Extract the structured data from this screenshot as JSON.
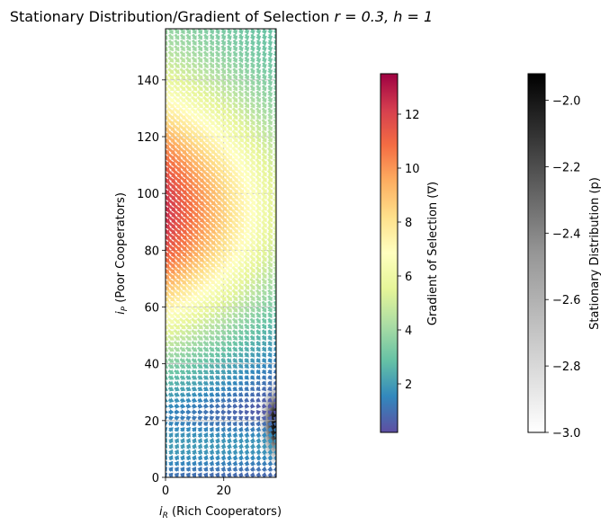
{
  "chart_data": {
    "type": "quiver",
    "title": "Stationary Distribution/Gradient of Selection r = 0.3, h = 1",
    "title_main": "Stationary Distribution/Gradient of Selection ",
    "title_params": "r = 0.3, h = 1",
    "xlabel": "i_R (Rich Cooperators)",
    "ylabel": "i_P (Poor Cooperators)",
    "xlabel_parts": {
      "symbol": "i",
      "sub": "R",
      "text": " (Rich Cooperators)"
    },
    "ylabel_parts": {
      "symbol": "i",
      "sub": "P",
      "text": " (Poor Cooperators)"
    },
    "xlim": [
      0,
      38
    ],
    "ylim": [
      0,
      158
    ],
    "x_ticks": [
      0,
      20
    ],
    "y_ticks": [
      0,
      20,
      40,
      60,
      80,
      100,
      120,
      140
    ],
    "grid": true,
    "colorbars": [
      {
        "label": "Gradient of Selection (∇)",
        "colormap": "Spectral_r",
        "range": [
          0.2,
          13.5
        ],
        "ticks": [
          2,
          4,
          6,
          8,
          10,
          12
        ]
      },
      {
        "label": "Stationary Distribution (p)",
        "colormap": "Greys",
        "range": [
          -3.0,
          -1.92
        ],
        "ticks": [
          -3.0,
          -2.8,
          -2.6,
          -2.4,
          -2.2,
          -2.0
        ],
        "tick_labels": [
          "−3.0",
          "−2.8",
          "−2.6",
          "−2.4",
          "−2.2",
          "−2.0"
        ]
      }
    ],
    "density_peak": {
      "x": 38,
      "y": 19,
      "log_value": -1.92
    }
  }
}
